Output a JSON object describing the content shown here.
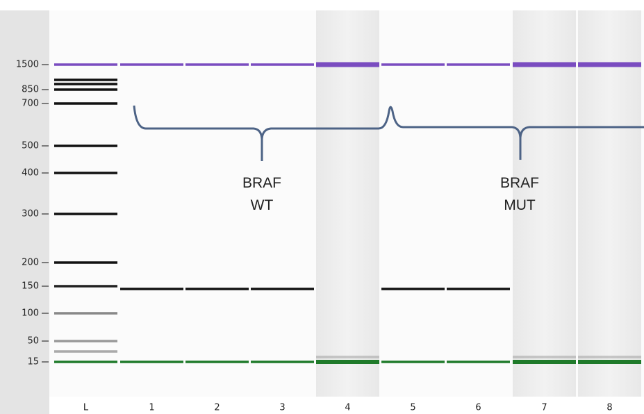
{
  "size_markers": [
    "1500",
    "850",
    "700",
    "500",
    "400",
    "300",
    "200",
    "150",
    "100",
    "50",
    "15"
  ],
  "lanes": [
    "L",
    "1",
    "2",
    "3",
    "4",
    "5",
    "6",
    "7",
    "8"
  ],
  "annotations": [
    {
      "lines": [
        "BRAF",
        "WT"
      ]
    },
    {
      "lines": [
        "BRAF",
        "MUT"
      ]
    }
  ]
}
